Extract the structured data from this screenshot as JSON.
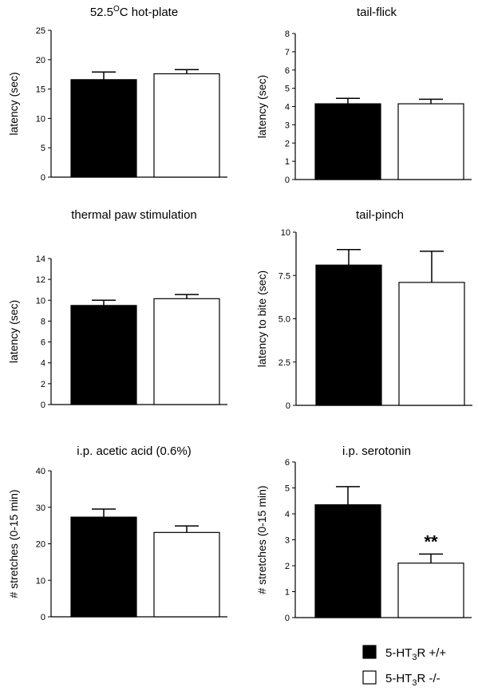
{
  "chart_data": [
    {
      "type": "bar",
      "title": {
        "main": "52.5",
        "sup": "O",
        "rest": "C hot-plate"
      },
      "ylabel": "latency (sec)",
      "categories": [
        "5-HT3R +/+",
        "5-HT3R -/-"
      ],
      "values": [
        16.6,
        17.6
      ],
      "errors": [
        1.3,
        0.7
      ],
      "ylim": [
        0,
        25
      ],
      "yticks": [
        "0",
        "5",
        "10",
        "15",
        "20",
        "25"
      ],
      "annotations": [
        "",
        ""
      ]
    },
    {
      "type": "bar",
      "title": {
        "main": "tail-flick",
        "sup": "",
        "rest": ""
      },
      "ylabel": "latency (sec)",
      "categories": [
        "5-HT3R +/+",
        "5-HT3R -/-"
      ],
      "values": [
        4.15,
        4.15
      ],
      "errors": [
        0.3,
        0.25
      ],
      "ylim": [
        0,
        8
      ],
      "yticks": [
        "0",
        "1",
        "2",
        "3",
        "4",
        "5",
        "6",
        "7",
        "8"
      ],
      "annotations": [
        "",
        ""
      ]
    },
    {
      "type": "bar",
      "title": {
        "main": "thermal paw stimulation",
        "sup": "",
        "rest": ""
      },
      "ylabel": "latency (sec)",
      "categories": [
        "5-HT3R +/+",
        "5-HT3R -/-"
      ],
      "values": [
        9.5,
        10.15
      ],
      "errors": [
        0.5,
        0.4
      ],
      "ylim": [
        0,
        14
      ],
      "yticks": [
        "0",
        "2",
        "4",
        "6",
        "8",
        "10",
        "12",
        "14"
      ],
      "annotations": [
        "",
        ""
      ]
    },
    {
      "type": "bar",
      "title": {
        "main": "tail-pinch",
        "sup": "",
        "rest": ""
      },
      "ylabel": "latency to bite (sec)",
      "categories": [
        "5-HT3R +/+",
        "5-HT3R -/-"
      ],
      "values": [
        8.1,
        7.1
      ],
      "errors": [
        0.9,
        1.8
      ],
      "ylim": [
        0,
        10
      ],
      "yticks": [
        "0",
        "2.5",
        "5.0",
        "7.5",
        "10"
      ],
      "annotations": [
        "",
        ""
      ]
    },
    {
      "type": "bar",
      "title": {
        "main": "i.p. acetic acid (0.6%)",
        "sup": "",
        "rest": ""
      },
      "ylabel": "# stretches (0-15 min)",
      "categories": [
        "5-HT3R +/+",
        "5-HT3R -/-"
      ],
      "values": [
        27.3,
        23.1
      ],
      "errors": [
        2.2,
        1.8
      ],
      "ylim": [
        0,
        40
      ],
      "yticks": [
        "0",
        "10",
        "20",
        "30",
        "40"
      ],
      "annotations": [
        "",
        ""
      ]
    },
    {
      "type": "bar",
      "title": {
        "main": "i.p. serotonin",
        "sup": "",
        "rest": ""
      },
      "ylabel": "# stretches (0-15 min)",
      "categories": [
        "5-HT3R +/+",
        "5-HT3R -/-"
      ],
      "values": [
        4.35,
        2.1
      ],
      "errors": [
        0.7,
        0.35
      ],
      "ylim": [
        0,
        6
      ],
      "yticks": [
        "0",
        "1",
        "2",
        "3",
        "4",
        "5",
        "6"
      ],
      "annotations": [
        "",
        "**"
      ]
    }
  ],
  "legend": {
    "position": "bottom-right",
    "items": [
      {
        "pre": "5-HT",
        "sub": "3",
        "post": "R +/+",
        "fill": "#000000"
      },
      {
        "pre": "5-HT",
        "sub": "3",
        "post": "R -/-",
        "fill": "#ffffff"
      }
    ]
  },
  "colors": {
    "wildtype_fill": "#000000",
    "knockout_fill": "#ffffff",
    "stroke": "#000000"
  }
}
